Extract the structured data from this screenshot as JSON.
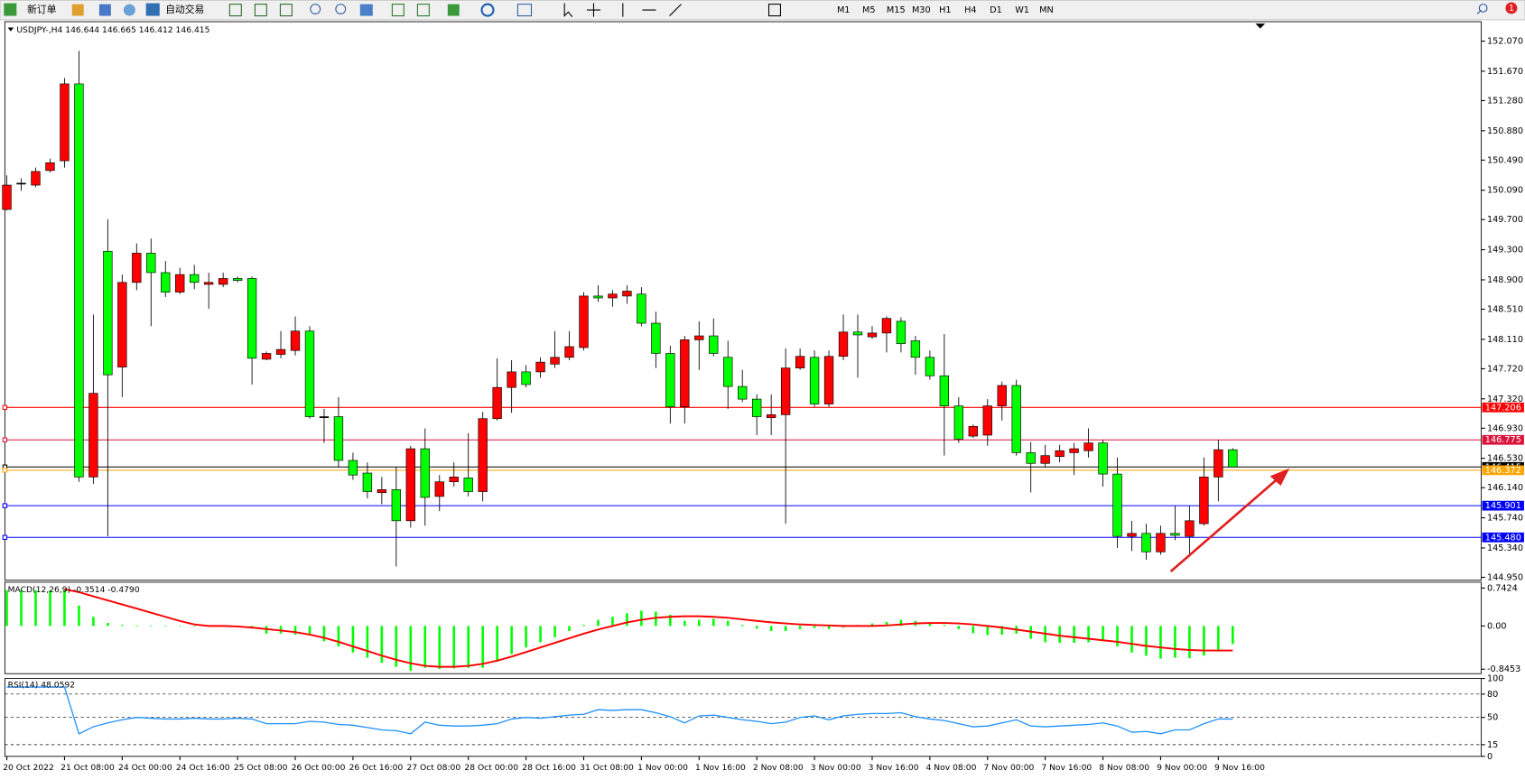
{
  "toolbar": {
    "buttons": [
      "新订单",
      "自动交易"
    ],
    "timeframes": [
      "M1",
      "M5",
      "M15",
      "M30",
      "H1",
      "H4",
      "D1",
      "W1",
      "MN"
    ],
    "badge": "1"
  },
  "chart_data": [
    {
      "type": "candlestick",
      "title": "USDJPY-,H4  146.644 146.665 146.412 146.415",
      "categories": [
        "20 Oct 2022",
        null,
        null,
        null,
        "21 Oct 08:00",
        null,
        null,
        null,
        "24 Oct 00:00",
        null,
        null,
        null,
        "24 Oct 16:00",
        null,
        null,
        null,
        "25 Oct 08:00",
        null,
        null,
        null,
        "26 Oct 00:00",
        null,
        null,
        null,
        "26 Oct 16:00",
        null,
        null,
        null,
        "27 Oct 08:00",
        null,
        null,
        null,
        "28 Oct 00:00",
        null,
        null,
        null,
        "28 Oct 16:00",
        null,
        null,
        null,
        "31 Oct 08:00",
        null,
        null,
        null,
        "1 Nov 00:00",
        null,
        null,
        null,
        "1 Nov 16:00",
        null,
        null,
        null,
        "2 Nov 08:00",
        null,
        null,
        null,
        "3 Nov 00:00",
        null,
        null,
        null,
        "3 Nov 16:00",
        null,
        null,
        null,
        "4 Nov 08:00",
        null,
        null,
        null,
        "7 Nov 00:00",
        null,
        null,
        null,
        "7 Nov 16:00",
        null,
        null,
        null,
        "8 Nov 08:00",
        null,
        null,
        null,
        "9 Nov 00:00",
        null,
        null,
        null,
        "9 Nov 16:00",
        null
      ],
      "open": [
        149.835,
        150.184,
        150.158,
        150.352,
        150.481,
        151.502,
        146.282,
        149.28,
        147.742,
        148.866,
        149.254,
        148.996,
        148.737,
        148.97,
        148.84,
        148.84,
        148.918,
        148.918,
        147.846,
        147.91,
        147.962,
        148.22,
        147.083,
        147.083,
        146.502,
        146.334,
        146.075,
        146.114,
        145.701,
        146.657,
        146.024,
        146.218,
        146.269,
        146.088,
        147.057,
        147.471,
        147.678,
        147.678,
        147.781,
        147.871,
        148.001,
        148.685,
        148.66,
        148.685,
        148.711,
        148.324,
        147.923,
        147.213,
        148.104,
        148.156,
        147.871,
        147.484,
        147.316,
        147.07,
        147.109,
        147.729,
        147.871,
        147.251,
        147.884,
        148.207,
        148.143,
        148.194,
        148.35,
        148.091,
        147.871,
        147.626,
        147.226,
        146.825,
        146.838,
        147.226,
        147.497,
        146.605,
        146.463,
        146.554,
        146.605,
        146.631,
        146.734,
        146.321,
        145.494,
        145.533,
        145.288,
        145.533,
        145.494,
        145.662,
        146.282,
        146.644
      ],
      "high": [
        150.287,
        150.249,
        150.391,
        150.507,
        151.579,
        151.941,
        148.44,
        149.706,
        148.97,
        149.383,
        149.448,
        149.151,
        149.06,
        149.099,
        148.996,
        148.996,
        148.944,
        148.944,
        147.949,
        148.22,
        148.414,
        148.285,
        147.187,
        147.342,
        146.605,
        146.476,
        146.282,
        146.411,
        146.696,
        146.928,
        146.308,
        146.476,
        146.864,
        147.148,
        147.859,
        147.833,
        147.768,
        147.871,
        148.22,
        148.22,
        148.737,
        148.828,
        148.763,
        148.828,
        148.802,
        148.479,
        148.026,
        148.156,
        148.35,
        148.388,
        148.091,
        147.704,
        147.38,
        147.38,
        147.988,
        147.988,
        147.962,
        147.962,
        148.44,
        148.44,
        148.285,
        148.414,
        148.401,
        148.156,
        147.962,
        148.181,
        147.342,
        146.98,
        147.316,
        147.549,
        147.574,
        146.747,
        146.709,
        146.709,
        146.734,
        146.928,
        146.773,
        146.541,
        145.701,
        145.662,
        145.636,
        145.895,
        145.895,
        146.541,
        146.773,
        146.665
      ],
      "low": [
        149.822,
        150.081,
        150.132,
        150.326,
        150.391,
        146.218,
        146.192,
        145.494,
        147.342,
        148.763,
        148.285,
        148.673,
        148.711,
        148.776,
        148.517,
        148.802,
        148.866,
        147.51,
        147.833,
        147.859,
        147.897,
        147.057,
        146.734,
        146.411,
        146.244,
        145.998,
        145.921,
        145.094,
        145.61,
        145.636,
        145.83,
        146.153,
        146.024,
        145.959,
        147.032,
        147.135,
        147.471,
        147.6,
        147.729,
        147.833,
        147.962,
        148.608,
        148.543,
        148.582,
        148.285,
        147.729,
        146.993,
        146.993,
        147.704,
        147.884,
        147.187,
        147.277,
        146.838,
        146.838,
        145.662,
        147.704,
        147.213,
        147.213,
        147.833,
        147.6,
        148.117,
        147.936,
        147.936,
        147.639,
        147.574,
        146.566,
        146.734,
        146.799,
        146.696,
        147.032,
        146.566,
        146.076,
        146.411,
        146.476,
        146.308,
        146.54,
        146.153,
        145.339,
        145.3,
        145.184,
        145.249,
        145.442,
        145.223,
        145.636,
        145.959,
        146.412
      ],
      "close": [
        150.158,
        150.184,
        150.339,
        150.455,
        151.502,
        146.282,
        147.393,
        147.639,
        148.866,
        149.254,
        148.996,
        148.737,
        148.97,
        148.866,
        148.866,
        148.918,
        148.892,
        147.859,
        147.923,
        147.975,
        148.22,
        147.083,
        147.083,
        146.502,
        146.308,
        146.088,
        146.114,
        145.701,
        146.657,
        146.011,
        146.218,
        146.282,
        146.088,
        147.057,
        147.471,
        147.678,
        147.51,
        147.807,
        147.871,
        148.013,
        148.685,
        148.66,
        148.711,
        148.75,
        148.324,
        147.923,
        147.213,
        148.104,
        148.156,
        147.923,
        147.484,
        147.316,
        147.083,
        147.109,
        147.729,
        147.884,
        147.251,
        147.884,
        148.207,
        148.169,
        148.194,
        148.388,
        148.052,
        147.871,
        147.626,
        147.226,
        146.786,
        146.954,
        147.226,
        147.497,
        146.605,
        146.463,
        146.566,
        146.631,
        146.657,
        146.734,
        146.321,
        145.494,
        145.533,
        145.288,
        145.533,
        145.507,
        145.701,
        146.282,
        146.644,
        146.415
      ],
      "up_color": "#ff0000",
      "down_color": "#00ff00",
      "ylim": [
        144.911,
        152.328
      ],
      "yticks": [
        {
          "value": 152.07,
          "label": "152.070"
        },
        {
          "value": 151.67,
          "label": "151.670"
        },
        {
          "value": 151.28,
          "label": "151.280"
        },
        {
          "value": 150.88,
          "label": "150.880"
        },
        {
          "value": 150.49,
          "label": "150.490"
        },
        {
          "value": 150.09,
          "label": "150.090"
        },
        {
          "value": 149.7,
          "label": "149.700"
        },
        {
          "value": 149.3,
          "label": "149.300"
        },
        {
          "value": 148.9,
          "label": "148.900"
        },
        {
          "value": 148.51,
          "label": "148.510"
        },
        {
          "value": 148.11,
          "label": "148.110"
        },
        {
          "value": 147.72,
          "label": "147.720"
        },
        {
          "value": 147.32,
          "label": "147.320"
        },
        {
          "value": 146.93,
          "label": "146.930"
        },
        {
          "value": 146.53,
          "label": "146.530"
        },
        {
          "value": 146.14,
          "label": "146.140"
        },
        {
          "value": 145.74,
          "label": "145.740"
        },
        {
          "value": 145.34,
          "label": "145.340"
        },
        {
          "value": 144.95,
          "label": "144.950"
        }
      ],
      "hlines": [
        {
          "value": 147.206,
          "color": "#ff0000"
        },
        {
          "value": 146.775,
          "color": "#dc143c"
        },
        {
          "value": 146.415,
          "color": "#000000"
        },
        {
          "value": 146.372,
          "color": "#ffa500"
        },
        {
          "value": 145.901,
          "color": "#0000ff"
        },
        {
          "value": 145.48,
          "label": "145.480",
          "color": "#0000ff"
        }
      ]
    },
    {
      "type": "macd",
      "title": "MACD(12,26,9) -0.3514 -0.4790",
      "series": [
        {
          "color": "#00ff00",
          "values": [
            0.7,
            0.7,
            0.7,
            0.7,
            0.7,
            0.4,
            0.18,
            0.06,
            0.02,
            0.01,
            0.01,
            0.0,
            0.0,
            0.0,
            0.0,
            -0.01,
            -0.02,
            -0.05,
            -0.15,
            -0.15,
            -0.17,
            -0.18,
            -0.3,
            -0.4,
            -0.52,
            -0.62,
            -0.72,
            -0.8,
            -0.88,
            -0.82,
            -0.84,
            -0.83,
            -0.82,
            -0.82,
            -0.7,
            -0.55,
            -0.42,
            -0.32,
            -0.22,
            -0.1,
            0.02,
            0.12,
            0.18,
            0.25,
            0.3,
            0.28,
            0.22,
            0.1,
            0.12,
            0.14,
            0.1,
            0.02,
            -0.05,
            -0.1,
            -0.1,
            -0.06,
            -0.04,
            -0.06,
            -0.03,
            0.02,
            0.05,
            0.08,
            0.12,
            0.1,
            0.06,
            0.02,
            -0.06,
            -0.14,
            -0.18,
            -0.17,
            -0.15,
            -0.25,
            -0.32,
            -0.33,
            -0.33,
            -0.32,
            -0.3,
            -0.4,
            -0.52,
            -0.58,
            -0.64,
            -0.62,
            -0.63,
            -0.58,
            -0.5,
            -0.3514
          ]
        },
        {
          "color": "#ff0000",
          "values": [
            null,
            null,
            null,
            null,
            0.72,
            0.66,
            0.58,
            0.5,
            0.42,
            0.34,
            0.26,
            0.18,
            0.1,
            0.03,
            0.0,
            0.0,
            -0.01,
            -0.03,
            -0.06,
            -0.09,
            -0.12,
            -0.17,
            -0.23,
            -0.31,
            -0.4,
            -0.49,
            -0.58,
            -0.66,
            -0.73,
            -0.78,
            -0.8,
            -0.8,
            -0.78,
            -0.74,
            -0.68,
            -0.6,
            -0.51,
            -0.42,
            -0.33,
            -0.24,
            -0.15,
            -0.07,
            0.0,
            0.07,
            0.12,
            0.16,
            0.18,
            0.19,
            0.19,
            0.18,
            0.16,
            0.13,
            0.1,
            0.07,
            0.05,
            0.03,
            0.02,
            0.01,
            0.0,
            0.0,
            0.0,
            0.01,
            0.03,
            0.05,
            0.06,
            0.06,
            0.05,
            0.03,
            0.0,
            -0.03,
            -0.07,
            -0.11,
            -0.15,
            -0.19,
            -0.22,
            -0.25,
            -0.28,
            -0.31,
            -0.35,
            -0.39,
            -0.42,
            -0.45,
            -0.47,
            -0.48,
            -0.48,
            -0.479
          ]
        }
      ],
      "ylim": [
        -0.933,
        0.857
      ],
      "yticks": [
        0.7424,
        {
          "value": 0,
          "label": "0.00"
        },
        -0.8453
      ]
    },
    {
      "type": "line",
      "title": "RSI(14) 48.0592",
      "color": "#1e90ff",
      "values": [
        89,
        89,
        89,
        89,
        89,
        29,
        38,
        43,
        47,
        50,
        49,
        48,
        48,
        49,
        48,
        48,
        49,
        48,
        42,
        42,
        42,
        45,
        44,
        41,
        40,
        37,
        34,
        33,
        29,
        44,
        40,
        39,
        39,
        40,
        42,
        48,
        50,
        49,
        51,
        53,
        54,
        60,
        59,
        60,
        60,
        56,
        51,
        43,
        52,
        53,
        50,
        47,
        45,
        42,
        44,
        50,
        52,
        47,
        52,
        54,
        55,
        55,
        56,
        51,
        48,
        46,
        42,
        38,
        39,
        43,
        47,
        39,
        38,
        39,
        40,
        41,
        43,
        39,
        31,
        32,
        29,
        34,
        34,
        42,
        48,
        48.0592
      ],
      "ylim": [
        0,
        100
      ],
      "yticks": [
        0,
        15,
        50,
        80,
        100
      ]
    }
  ]
}
